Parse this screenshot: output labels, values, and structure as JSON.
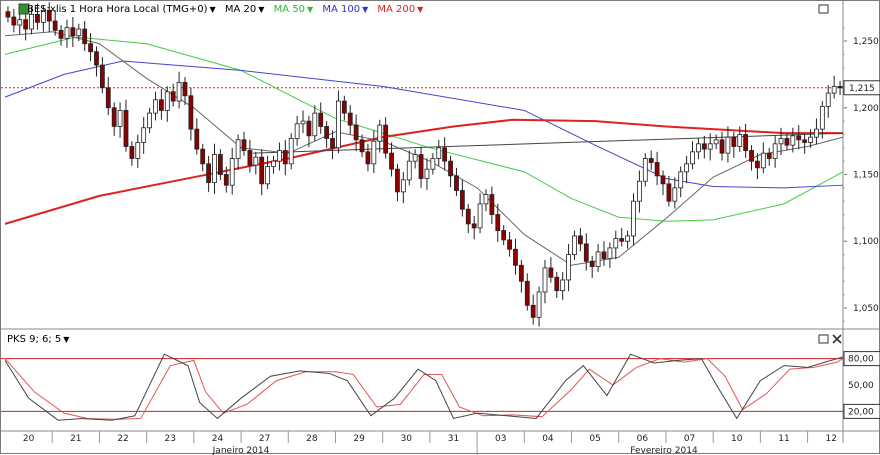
{
  "header": {
    "symbol_label": "BES:xlis 1 Hora Hora Local (TMG+0)",
    "ma_labels": [
      {
        "label": "MA 20",
        "color": "#000000"
      },
      {
        "label": "MA 50",
        "color": "#2db82d"
      },
      {
        "label": "MA 100",
        "color": "#3333cc"
      },
      {
        "label": "MA 200",
        "color": "#dd2222"
      }
    ],
    "indicator_label": "PKS 9; 6; 5"
  },
  "colors": {
    "candle_up": "#ffffff",
    "candle_down": "#8b0000",
    "ma20": "#666666",
    "ma50": "#44cc44",
    "ma100": "#4444cc",
    "ma200": "#dd2222",
    "pks_k": "#444444",
    "pks_d": "#e05555",
    "band": "#cc2222"
  },
  "icons": {
    "maximize": "maximize-icon",
    "close": "close-icon",
    "menu": "dropdown-triangle-icon"
  },
  "chart_data": [
    {
      "type": "candlestick",
      "price_ylim": [
        1.035,
        1.28
      ],
      "y_ticks": [
        "1,250",
        "1,200",
        "1,150",
        "1,100",
        "1,050"
      ],
      "y_tick_values": [
        1.25,
        1.2,
        1.15,
        1.1,
        1.05
      ],
      "last_price_label": "1,215",
      "last_price": 1.215,
      "x_day_labels": [
        "20",
        "21",
        "22",
        "23",
        "24",
        "27",
        "28",
        "29",
        "30",
        "31",
        "03",
        "04",
        "05",
        "06",
        "07",
        "10",
        "11",
        "12"
      ],
      "month_labels": [
        "Janeiro 2014",
        "Fevereiro 2014"
      ],
      "bars_per_day": 8,
      "close_series": [
        1.268,
        1.262,
        1.266,
        1.259,
        1.27,
        1.264,
        1.273,
        1.265,
        1.258,
        1.252,
        1.26,
        1.254,
        1.259,
        1.248,
        1.242,
        1.232,
        1.215,
        1.2,
        1.186,
        1.198,
        1.171,
        1.162,
        1.174,
        1.185,
        1.196,
        1.206,
        1.198,
        1.212,
        1.205,
        1.219,
        1.209,
        1.184,
        1.169,
        1.158,
        1.144,
        1.165,
        1.15,
        1.142,
        1.162,
        1.176,
        1.168,
        1.157,
        1.163,
        1.143,
        1.156,
        1.16,
        1.168,
        1.158,
        1.177,
        1.188,
        1.19,
        1.179,
        1.196,
        1.186,
        1.177,
        1.17,
        1.205,
        1.196,
        1.187,
        1.176,
        1.167,
        1.158,
        1.175,
        1.187,
        1.166,
        1.154,
        1.137,
        1.146,
        1.16,
        1.165,
        1.147,
        1.154,
        1.162,
        1.17,
        1.16,
        1.149,
        1.138,
        1.124,
        1.113,
        1.11,
        1.128,
        1.135,
        1.12,
        1.108,
        1.101,
        1.094,
        1.082,
        1.07,
        1.052,
        1.043,
        1.062,
        1.08,
        1.073,
        1.063,
        1.071,
        1.09,
        1.104,
        1.098,
        1.085,
        1.081,
        1.092,
        1.087,
        1.095,
        1.102,
        1.1,
        1.104,
        1.13,
        1.145,
        1.162,
        1.159,
        1.149,
        1.143,
        1.13,
        1.14,
        1.152,
        1.158,
        1.167,
        1.173,
        1.169,
        1.173,
        1.176,
        1.166,
        1.178,
        1.171,
        1.18,
        1.168,
        1.16,
        1.155,
        1.166,
        1.162,
        1.173,
        1.177,
        1.172,
        1.179,
        1.176,
        1.174,
        1.178,
        1.184,
        1.201,
        1.211,
        1.216,
        1.215
      ],
      "ma20_points": [
        [
          0,
          1.254
        ],
        [
          8,
          1.257
        ],
        [
          16,
          1.248
        ],
        [
          24,
          1.222
        ],
        [
          32,
          1.2
        ],
        [
          40,
          1.17
        ],
        [
          48,
          1.166
        ],
        [
          56,
          1.182
        ],
        [
          64,
          1.175
        ],
        [
          72,
          1.16
        ],
        [
          80,
          1.14
        ],
        [
          88,
          1.105
        ],
        [
          96,
          1.082
        ],
        [
          104,
          1.088
        ],
        [
          112,
          1.117
        ],
        [
          120,
          1.148
        ],
        [
          128,
          1.165
        ],
        [
          136,
          1.171
        ],
        [
          142,
          1.178
        ]
      ],
      "ma50_points": [
        [
          0,
          1.24
        ],
        [
          12,
          1.253
        ],
        [
          24,
          1.248
        ],
        [
          40,
          1.228
        ],
        [
          56,
          1.192
        ],
        [
          72,
          1.17
        ],
        [
          88,
          1.152
        ],
        [
          96,
          1.132
        ],
        [
          104,
          1.118
        ],
        [
          112,
          1.115
        ],
        [
          120,
          1.116
        ],
        [
          132,
          1.128
        ],
        [
          142,
          1.152
        ]
      ],
      "ma100_points": [
        [
          0,
          1.208
        ],
        [
          10,
          1.225
        ],
        [
          20,
          1.235
        ],
        [
          40,
          1.228
        ],
        [
          64,
          1.216
        ],
        [
          88,
          1.198
        ],
        [
          100,
          1.172
        ],
        [
          112,
          1.147
        ],
        [
          120,
          1.141
        ],
        [
          132,
          1.14
        ],
        [
          142,
          1.142
        ]
      ],
      "ma200_points": [
        [
          0,
          1.113
        ],
        [
          16,
          1.134
        ],
        [
          32,
          1.148
        ],
        [
          48,
          1.162
        ],
        [
          64,
          1.178
        ],
        [
          76,
          1.186
        ],
        [
          86,
          1.191
        ],
        [
          100,
          1.19
        ],
        [
          112,
          1.186
        ],
        [
          124,
          1.183
        ],
        [
          132,
          1.181
        ],
        [
          142,
          1.181
        ]
      ],
      "trendline": {
        "from": [
          42,
          1.166
        ],
        "to": [
          142,
          1.181
        ]
      }
    },
    {
      "type": "line",
      "name": "PKS 9; 6; 5",
      "ylim": [
        0,
        100
      ],
      "y_ticks": [
        "80,00",
        "50,00",
        "20,00"
      ],
      "y_tick_values": [
        80,
        50,
        20
      ],
      "bands": [
        80,
        20
      ],
      "k_points": [
        [
          0,
          78
        ],
        [
          4,
          35
        ],
        [
          9,
          10
        ],
        [
          13,
          12
        ],
        [
          18,
          10
        ],
        [
          22,
          15
        ],
        [
          27,
          85
        ],
        [
          31,
          72
        ],
        [
          33,
          30
        ],
        [
          36,
          12
        ],
        [
          40,
          35
        ],
        [
          45,
          60
        ],
        [
          50,
          66
        ],
        [
          55,
          63
        ],
        [
          58,
          55
        ],
        [
          62,
          15
        ],
        [
          66,
          35
        ],
        [
          70,
          68
        ],
        [
          73,
          55
        ],
        [
          76,
          12
        ],
        [
          80,
          18
        ],
        [
          85,
          15
        ],
        [
          90,
          12
        ],
        [
          95,
          55
        ],
        [
          98,
          72
        ],
        [
          102,
          38
        ],
        [
          106,
          85
        ],
        [
          110,
          75
        ],
        [
          114,
          78
        ],
        [
          118,
          80
        ],
        [
          121,
          45
        ],
        [
          124,
          12
        ],
        [
          128,
          55
        ],
        [
          132,
          72
        ],
        [
          136,
          70
        ],
        [
          140,
          78
        ],
        [
          142,
          82
        ]
      ],
      "d_points": [
        [
          0,
          80
        ],
        [
          5,
          42
        ],
        [
          10,
          18
        ],
        [
          14,
          12
        ],
        [
          19,
          11
        ],
        [
          23,
          12
        ],
        [
          28,
          72
        ],
        [
          32,
          78
        ],
        [
          34,
          42
        ],
        [
          37,
          18
        ],
        [
          41,
          28
        ],
        [
          46,
          55
        ],
        [
          51,
          65
        ],
        [
          56,
          65
        ],
        [
          59,
          62
        ],
        [
          63,
          25
        ],
        [
          67,
          28
        ],
        [
          71,
          62
        ],
        [
          74,
          62
        ],
        [
          77,
          25
        ],
        [
          81,
          15
        ],
        [
          86,
          16
        ],
        [
          91,
          14
        ],
        [
          96,
          45
        ],
        [
          99,
          68
        ],
        [
          103,
          50
        ],
        [
          107,
          70
        ],
        [
          111,
          80
        ],
        [
          115,
          76
        ],
        [
          119,
          80
        ],
        [
          122,
          60
        ],
        [
          125,
          22
        ],
        [
          129,
          40
        ],
        [
          133,
          68
        ],
        [
          137,
          70
        ],
        [
          141,
          76
        ],
        [
          142,
          80
        ]
      ]
    }
  ]
}
